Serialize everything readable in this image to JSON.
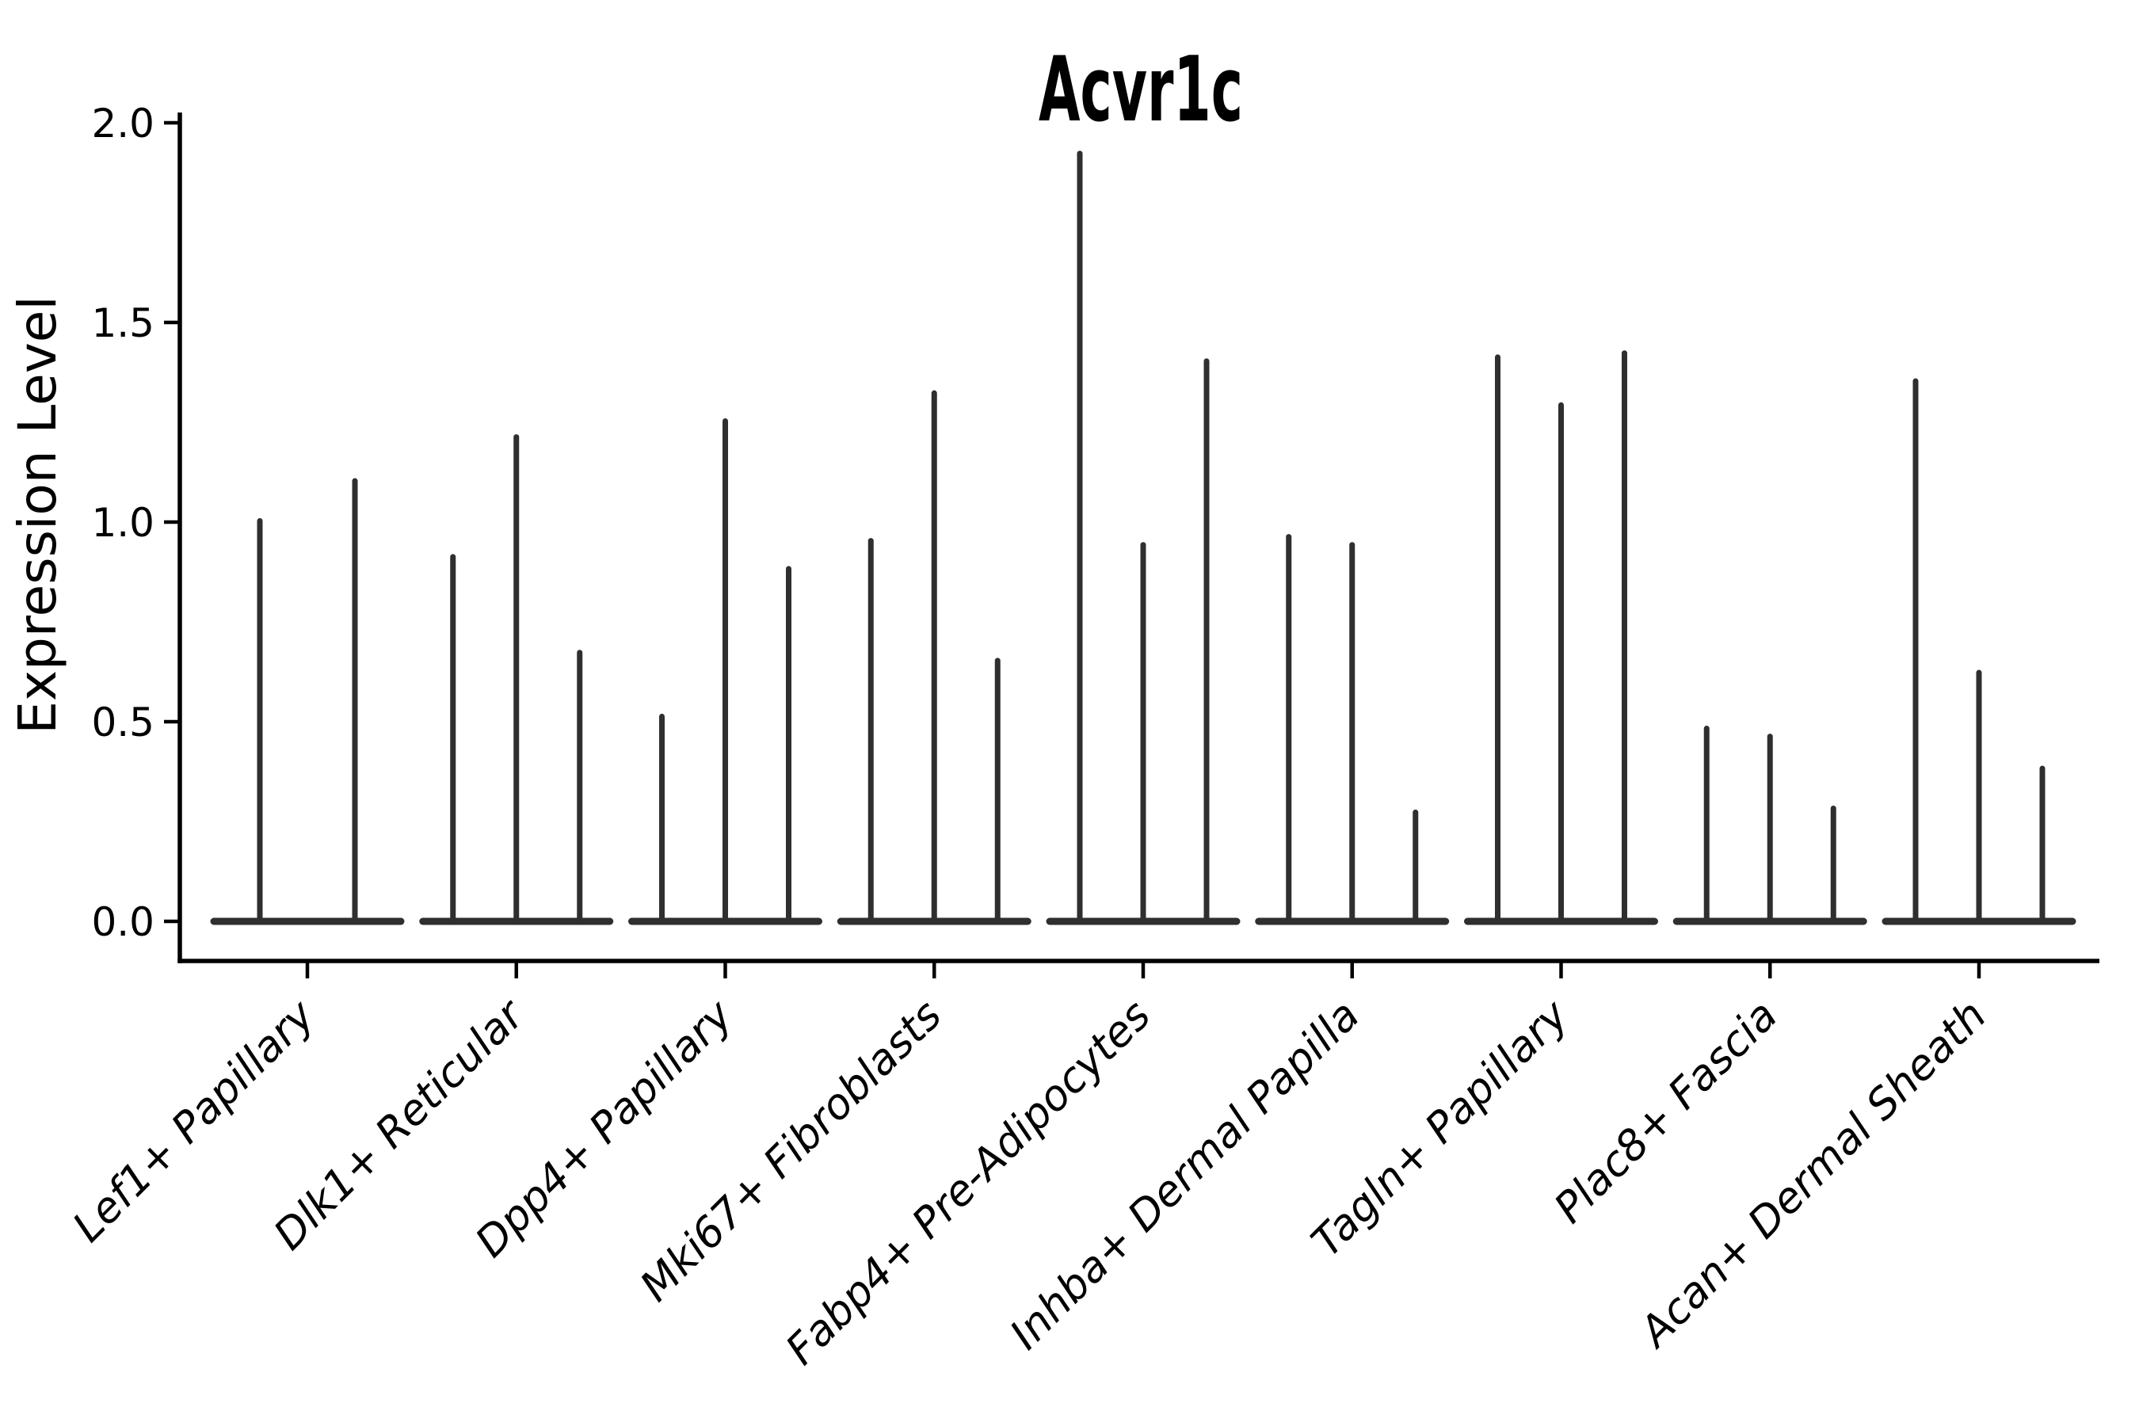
{
  "figure": {
    "background_color": "#ffffff",
    "ink_color": "#2f2f2f",
    "axis_color": "#000000",
    "text_color": "#000000"
  },
  "chart_data": {
    "type": "violin",
    "title": "Acvr1c",
    "xlabel": "",
    "ylabel": "Expression Level",
    "ylim": [
      0,
      2.0
    ],
    "yticks": [
      {
        "value": 0.0,
        "label": "0.0"
      },
      {
        "value": 0.5,
        "label": "0.5"
      },
      {
        "value": 1.0,
        "label": "1.0"
      },
      {
        "value": 1.5,
        "label": "1.5"
      },
      {
        "value": 2.0,
        "label": "2.0"
      }
    ],
    "grid": false,
    "legend_position": "none",
    "x_tick_rotation_deg": 45,
    "categories": [
      "Lef1+ Papillary",
      "Dlk1+ Reticular",
      "Dpp4+ Papillary",
      "Mki67+ Fibroblasts",
      "Fabp4+ Pre-Adipocytes",
      "Inhba+ Dermal Papilla",
      "Tagln+ Papillary",
      "Plac8+ Fascia",
      "Acan+ Dermal Sheath"
    ],
    "groups": [
      {
        "label": "Lef1+ Papillary",
        "violin_peak_expression": [
          1.01,
          1.11
        ]
      },
      {
        "label": "Dlk1+ Reticular",
        "violin_peak_expression": [
          0.92,
          1.22,
          0.68
        ]
      },
      {
        "label": "Dpp4+ Papillary",
        "violin_peak_expression": [
          0.52,
          1.26,
          0.89
        ]
      },
      {
        "label": "Mki67+ Fibroblasts",
        "violin_peak_expression": [
          0.96,
          1.33,
          0.66
        ]
      },
      {
        "label": "Fabp4+ Pre-Adipocytes",
        "violin_peak_expression": [
          1.93,
          0.95,
          1.41
        ]
      },
      {
        "label": "Inhba+ Dermal Papilla",
        "violin_peak_expression": [
          0.97,
          0.95,
          0.28
        ]
      },
      {
        "label": "Tagln+ Papillary",
        "violin_peak_expression": [
          1.42,
          1.3,
          1.43
        ]
      },
      {
        "label": "Plac8+ Fascia",
        "violin_peak_expression": [
          0.49,
          0.47,
          0.29
        ]
      },
      {
        "label": "Acan+ Dermal Sheath",
        "violin_peak_expression": [
          1.36,
          0.63,
          0.39
        ]
      }
    ],
    "description": "Violin plot of Acvr1c expression; all violins collapse to a flat bar at 0 with a single thin spike to each group's maximum expression."
  }
}
